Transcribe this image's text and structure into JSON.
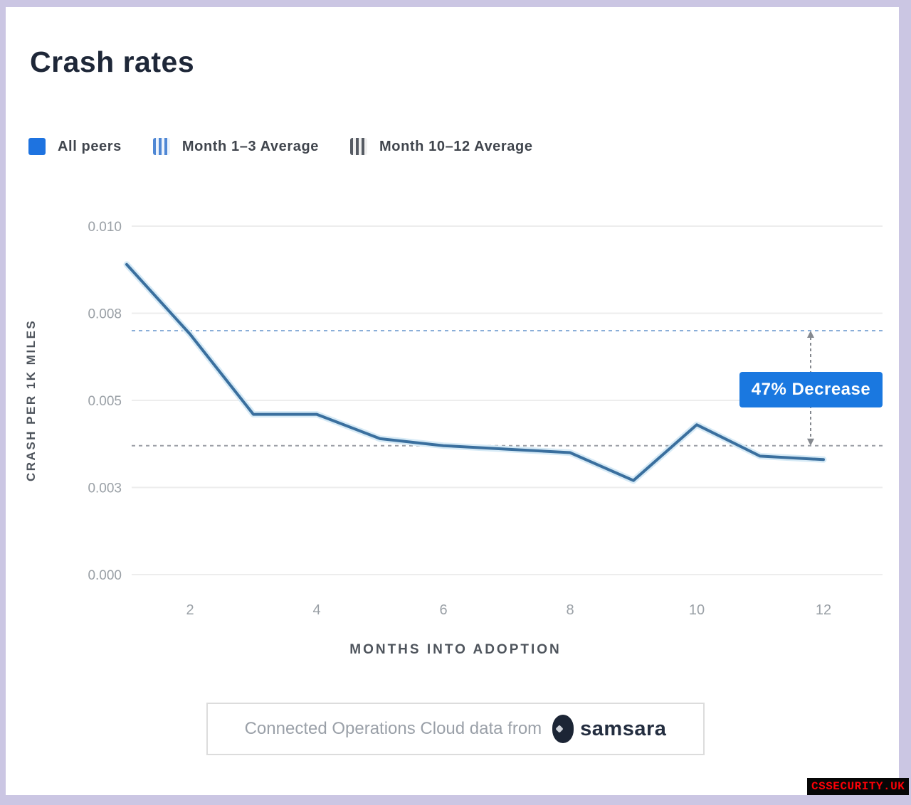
{
  "page": {
    "title": "Crash rates"
  },
  "legend": {
    "items": [
      {
        "label": "All peers",
        "swatch": "solid-square",
        "color": "#1e73e0"
      },
      {
        "label": "Month 1–3 Average",
        "swatch": "striped-square",
        "color": "#4f87d4"
      },
      {
        "label": "Month 10–12 Average",
        "swatch": "striped-square",
        "color": "#565b63"
      }
    ]
  },
  "chart_data": {
    "type": "line",
    "title": "Crash rates",
    "xlabel": "MONTHS INTO ADOPTION",
    "ylabel": "CRASH PER 1K MILES",
    "x": [
      1,
      2,
      3,
      4,
      5,
      6,
      7,
      8,
      9,
      10,
      11,
      12
    ],
    "series": [
      {
        "name": "All peers",
        "color": "#3a6f9e",
        "values": [
          0.0089,
          0.0069,
          0.0046,
          0.0046,
          0.0039,
          0.0037,
          0.0036,
          0.0035,
          0.0027,
          0.0043,
          0.0034,
          0.0033
        ]
      }
    ],
    "xticks": {
      "values": [
        2,
        4,
        6,
        8,
        10,
        12
      ],
      "labels": [
        "2",
        "4",
        "6",
        "8",
        "10",
        "12"
      ]
    },
    "yticks": {
      "values": [
        0.01,
        0.0075,
        0.005,
        0.0025,
        0
      ],
      "labels": [
        "0.010",
        "0.008",
        "0.005",
        "0.003",
        "0.000"
      ]
    },
    "ylim": [
      0,
      0.01
    ],
    "grid": "horizontal",
    "legend_position": "top-left",
    "reference_lines": [
      {
        "name": "Month 1–3 Average",
        "value": 0.007,
        "style": "dashed",
        "color": "#8aaed8"
      },
      {
        "name": "Month 10–12 Average",
        "value": 0.0037,
        "style": "dashed",
        "color": "#9a9ea5"
      }
    ],
    "annotation": {
      "label": "47% Decrease",
      "color": "#1a78e0",
      "text_color": "#ffffff"
    }
  },
  "footer": {
    "source_text": "Connected Operations Cloud data from",
    "brand": "samsara"
  },
  "watermark": {
    "text": "CSSECURITY.UK"
  }
}
